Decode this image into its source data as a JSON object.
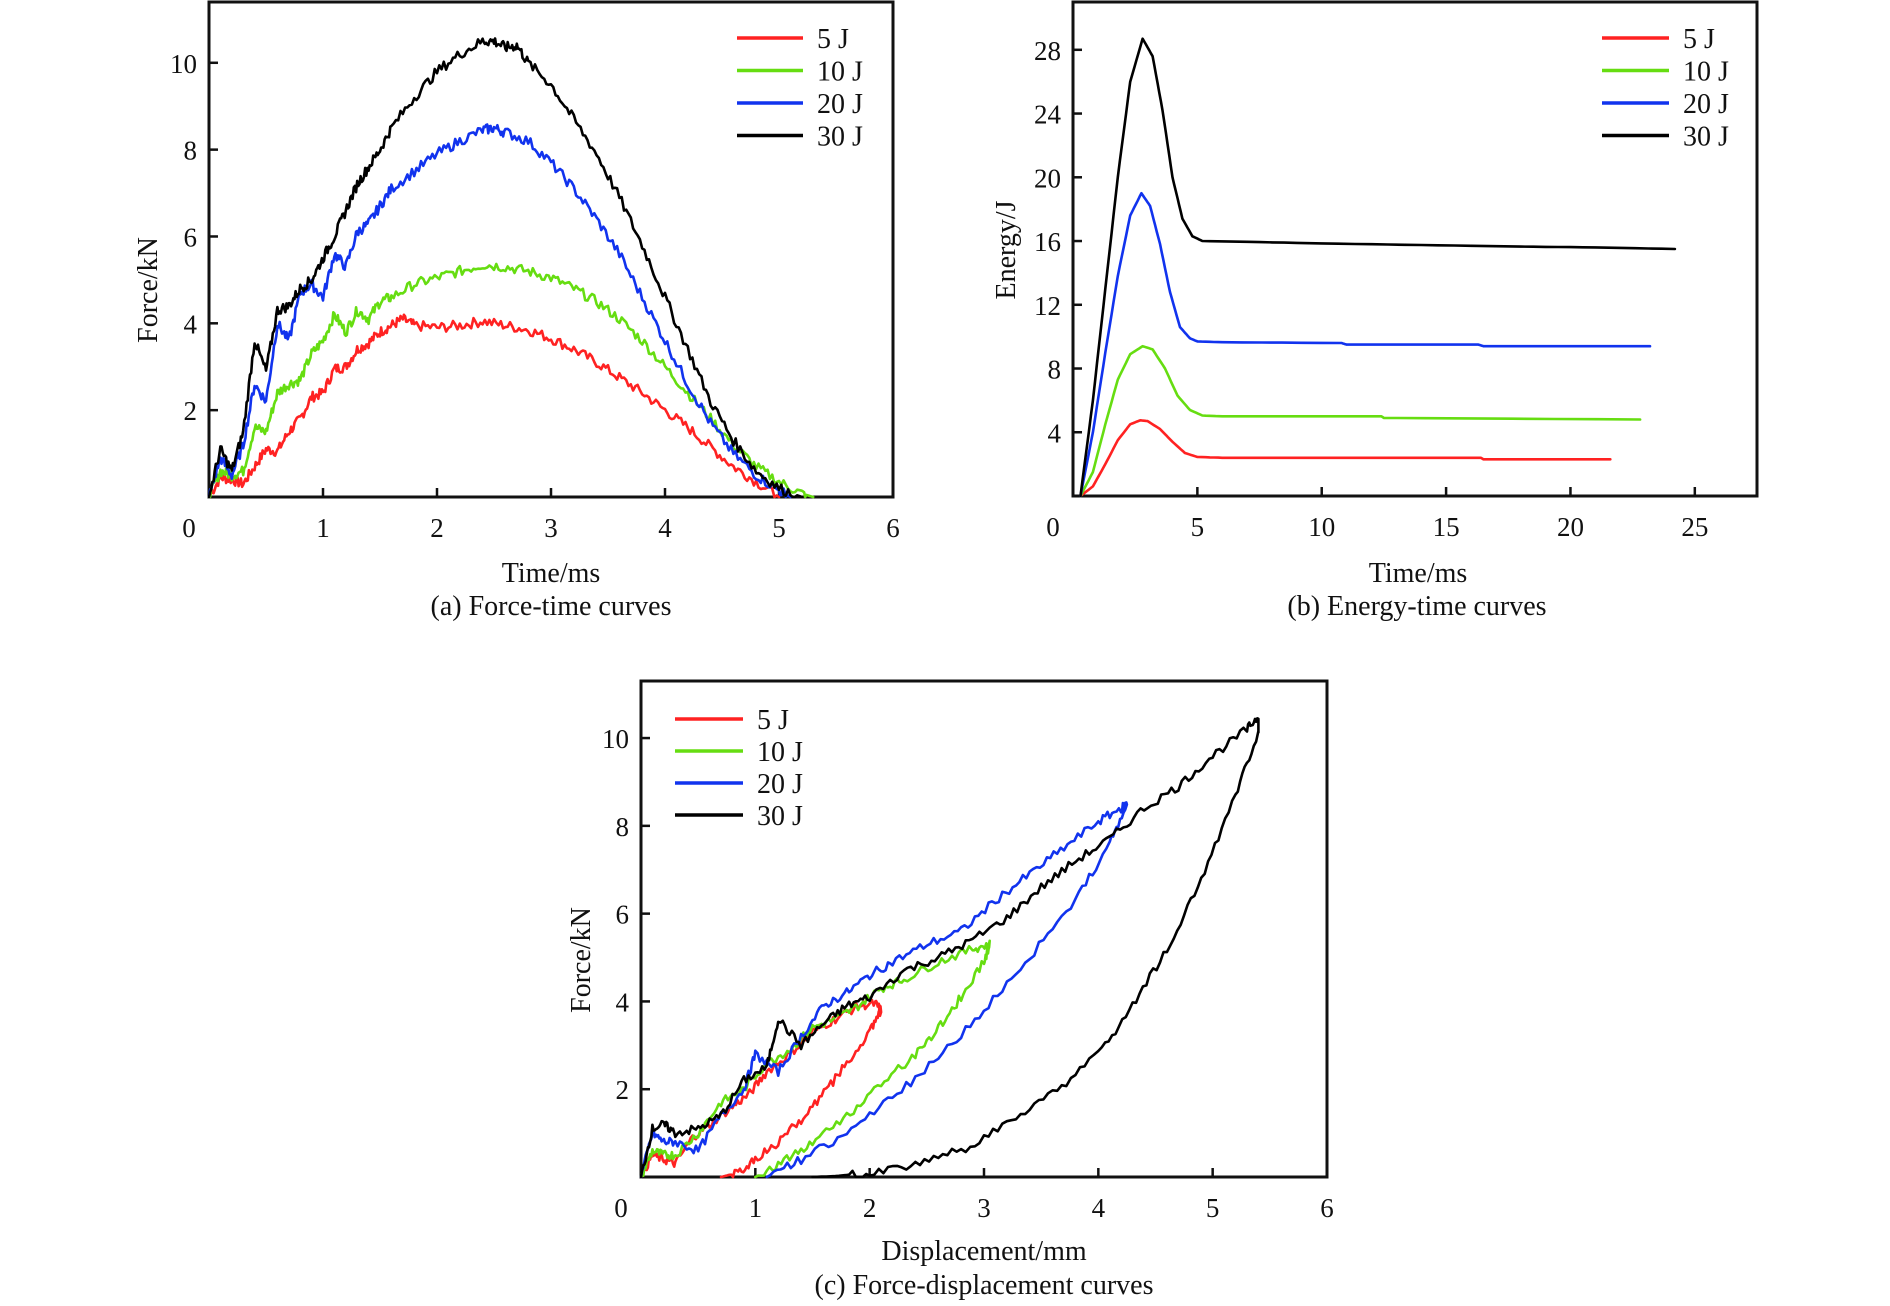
{
  "colors": {
    "5 J": "#ff2222",
    "10 J": "#66dd11",
    "20 J": "#1133ee",
    "30 J": "#000000"
  },
  "chart_data": [
    {
      "id": "a",
      "type": "line",
      "title": "",
      "caption": "(a) Force-time curves",
      "xlabel": "Time/ms",
      "ylabel": "Force/kN",
      "xlim": [
        0,
        6
      ],
      "ylim": [
        0,
        11.4
      ],
      "xticks": [
        0,
        1,
        2,
        3,
        4,
        5,
        6
      ],
      "yticks": [
        2,
        4,
        6,
        8,
        10
      ],
      "grid": false,
      "legend": "top-right",
      "noise": 0.12,
      "series": [
        {
          "name": "5 J",
          "x": [
            0.0,
            0.1,
            0.2,
            0.3,
            0.4,
            0.5,
            0.6,
            0.7,
            0.8,
            0.9,
            1.0,
            1.1,
            1.2,
            1.3,
            1.4,
            1.5,
            1.6,
            1.7,
            1.8,
            2.0,
            2.2,
            2.4,
            2.6,
            2.8,
            3.0,
            3.2,
            3.4,
            3.6,
            3.8,
            4.0,
            4.2,
            4.4,
            4.6,
            4.8,
            5.0
          ],
          "y": [
            0.0,
            0.45,
            0.4,
            0.3,
            0.7,
            1.1,
            1.05,
            1.5,
            1.8,
            2.3,
            2.4,
            2.95,
            3.0,
            3.4,
            3.55,
            3.8,
            3.95,
            4.1,
            3.95,
            3.9,
            3.95,
            4.05,
            3.95,
            3.85,
            3.65,
            3.4,
            3.1,
            2.75,
            2.4,
            2.0,
            1.6,
            1.15,
            0.7,
            0.35,
            0.0
          ]
        },
        {
          "name": "10 J",
          "x": [
            0.0,
            0.1,
            0.2,
            0.3,
            0.4,
            0.5,
            0.6,
            0.7,
            0.8,
            0.9,
            1.0,
            1.1,
            1.2,
            1.3,
            1.4,
            1.5,
            1.6,
            1.8,
            2.0,
            2.2,
            2.4,
            2.6,
            2.8,
            3.0,
            3.2,
            3.4,
            3.6,
            3.8,
            4.0,
            4.2,
            4.4,
            4.6,
            4.8,
            5.0,
            5.2,
            5.3
          ],
          "y": [
            0.0,
            0.6,
            0.5,
            0.6,
            1.6,
            1.5,
            2.4,
            2.6,
            2.7,
            3.3,
            3.6,
            4.2,
            3.8,
            4.3,
            4.1,
            4.5,
            4.6,
            4.9,
            5.05,
            5.2,
            5.35,
            5.3,
            5.2,
            5.05,
            4.8,
            4.5,
            4.1,
            3.6,
            3.0,
            2.4,
            1.8,
            1.2,
            0.7,
            0.35,
            0.08,
            0.0
          ]
        },
        {
          "name": "20 J",
          "x": [
            0.0,
            0.1,
            0.2,
            0.3,
            0.4,
            0.5,
            0.6,
            0.7,
            0.8,
            0.9,
            1.0,
            1.1,
            1.2,
            1.3,
            1.4,
            1.5,
            1.6,
            1.8,
            2.0,
            2.2,
            2.4,
            2.5,
            2.6,
            2.8,
            3.0,
            3.2,
            3.4,
            3.6,
            3.8,
            4.0,
            4.2,
            4.4,
            4.6,
            4.8,
            5.0,
            5.1
          ],
          "y": [
            0.0,
            0.9,
            0.5,
            1.2,
            2.6,
            2.2,
            4.0,
            3.6,
            4.7,
            4.9,
            4.6,
            5.6,
            5.3,
            6.1,
            6.3,
            6.7,
            7.1,
            7.5,
            7.9,
            8.2,
            8.45,
            8.5,
            8.4,
            8.2,
            7.7,
            7.1,
            6.4,
            5.6,
            4.6,
            3.6,
            2.6,
            1.7,
            1.0,
            0.5,
            0.15,
            0.0
          ]
        },
        {
          "name": "30 J",
          "x": [
            0.0,
            0.1,
            0.2,
            0.3,
            0.4,
            0.5,
            0.6,
            0.7,
            0.8,
            0.9,
            1.0,
            1.1,
            1.2,
            1.3,
            1.4,
            1.5,
            1.6,
            1.8,
            2.0,
            2.2,
            2.4,
            2.5,
            2.6,
            2.7,
            2.8,
            3.0,
            3.2,
            3.4,
            3.6,
            3.8,
            4.0,
            4.2,
            4.4,
            4.6,
            4.8,
            5.0,
            5.2
          ],
          "y": [
            0.0,
            1.1,
            0.6,
            1.5,
            3.6,
            2.9,
            4.3,
            4.4,
            4.8,
            5.0,
            5.5,
            6.0,
            6.6,
            7.2,
            7.6,
            8.0,
            8.5,
            9.2,
            9.8,
            10.2,
            10.5,
            10.5,
            10.35,
            10.4,
            10.0,
            9.5,
            8.7,
            7.9,
            6.9,
            5.8,
            4.6,
            3.4,
            2.2,
            1.3,
            0.6,
            0.2,
            0.0
          ]
        }
      ]
    },
    {
      "id": "b",
      "type": "line",
      "title": "",
      "caption": "(b) Energy-time curves",
      "xlabel": "Time/ms",
      "ylabel": "Energy/J",
      "xlim": [
        0,
        27.5
      ],
      "ylim": [
        0,
        31
      ],
      "xticks": [
        0,
        5,
        10,
        15,
        20,
        25
      ],
      "yticks": [
        4,
        8,
        12,
        16,
        20,
        24,
        28
      ],
      "grid": false,
      "legend": "top-right",
      "noise": 0,
      "series": [
        {
          "name": "5 J",
          "x": [
            0.3,
            0.8,
            1.3,
            1.8,
            2.3,
            2.7,
            3.0,
            3.5,
            4.0,
            4.5,
            5.0,
            6,
            10,
            16.4,
            16.5,
            21.6
          ],
          "y": [
            0,
            0.6,
            2.0,
            3.5,
            4.5,
            4.75,
            4.7,
            4.2,
            3.4,
            2.7,
            2.45,
            2.4,
            2.4,
            2.4,
            2.3,
            2.3
          ]
        },
        {
          "name": "10 J",
          "x": [
            0.3,
            0.8,
            1.3,
            1.8,
            2.3,
            2.8,
            3.2,
            3.7,
            4.2,
            4.7,
            5.2,
            6,
            12.4,
            12.5,
            22.8
          ],
          "y": [
            0,
            1.5,
            4.5,
            7.3,
            8.9,
            9.4,
            9.2,
            8.0,
            6.3,
            5.4,
            5.05,
            5.0,
            5.0,
            4.9,
            4.8
          ]
        },
        {
          "name": "20 J",
          "x": [
            0.3,
            0.8,
            1.3,
            1.8,
            2.3,
            2.75,
            3.1,
            3.5,
            3.9,
            4.3,
            4.7,
            5.0,
            6,
            10.8,
            11,
            16.3,
            16.5,
            23.2
          ],
          "y": [
            0,
            4.0,
            9.0,
            13.8,
            17.6,
            19.0,
            18.2,
            15.8,
            12.8,
            10.6,
            9.9,
            9.7,
            9.65,
            9.6,
            9.5,
            9.5,
            9.4,
            9.4
          ]
        },
        {
          "name": "30 J",
          "x": [
            0.3,
            0.8,
            1.3,
            1.8,
            2.3,
            2.8,
            3.2,
            3.6,
            4.0,
            4.4,
            4.8,
            5.2,
            7,
            10,
            14,
            18,
            21,
            24.2
          ],
          "y": [
            0,
            6.0,
            13.0,
            20.0,
            26.0,
            28.7,
            27.6,
            24.2,
            20.0,
            17.4,
            16.3,
            16.0,
            15.95,
            15.85,
            15.75,
            15.65,
            15.6,
            15.5
          ]
        }
      ]
    },
    {
      "id": "c",
      "type": "line",
      "title": "",
      "caption": "(c) Force-displacement curves",
      "xlabel": "Displacement/mm",
      "ylabel": "Force/kN",
      "xlim": [
        0,
        6
      ],
      "ylim": [
        0,
        11.3
      ],
      "xticks": [
        0,
        1,
        2,
        3,
        4,
        5,
        6
      ],
      "yticks": [
        2,
        4,
        6,
        8,
        10
      ],
      "grid": false,
      "legend": "top-left",
      "noise": 0.1,
      "series": [
        {
          "name": "5 J",
          "x": [
            0.0,
            0.1,
            0.2,
            0.3,
            0.45,
            0.6,
            0.8,
            0.95,
            1.1,
            1.3,
            1.5,
            1.7,
            1.9,
            2.05,
            2.1,
            2.0,
            1.8,
            1.6,
            1.4,
            1.2,
            1.0,
            0.85,
            0.7
          ],
          "y": [
            0.0,
            0.5,
            0.4,
            0.3,
            0.9,
            1.2,
            1.6,
            1.9,
            2.4,
            2.8,
            3.3,
            3.6,
            3.9,
            3.95,
            3.8,
            3.3,
            2.6,
            1.9,
            1.3,
            0.8,
            0.4,
            0.1,
            0.0
          ]
        },
        {
          "name": "10 J",
          "x": [
            0.0,
            0.1,
            0.2,
            0.3,
            0.5,
            0.7,
            0.9,
            1.1,
            1.3,
            1.5,
            1.7,
            1.9,
            2.1,
            2.3,
            2.6,
            2.9,
            3.05,
            3.0,
            2.8,
            2.6,
            2.4,
            2.1,
            1.8,
            1.5,
            1.25,
            1.0
          ],
          "y": [
            0.0,
            0.6,
            0.5,
            0.5,
            1.0,
            1.7,
            2.0,
            2.6,
            2.9,
            3.4,
            3.6,
            3.9,
            4.3,
            4.5,
            4.9,
            5.2,
            5.3,
            4.9,
            4.1,
            3.4,
            2.8,
            2.1,
            1.4,
            0.8,
            0.35,
            0.0
          ]
        },
        {
          "name": "20 J",
          "x": [
            0.0,
            0.1,
            0.2,
            0.3,
            0.5,
            0.7,
            0.9,
            1.0,
            1.2,
            1.4,
            1.6,
            1.8,
            2.0,
            2.2,
            2.5,
            2.8,
            3.1,
            3.4,
            3.7,
            4.0,
            4.2,
            4.25,
            4.1,
            3.8,
            3.4,
            3.0,
            2.6,
            2.2,
            1.8,
            1.4,
            1.1
          ],
          "y": [
            0.0,
            1.0,
            0.8,
            0.8,
            0.6,
            1.4,
            2.0,
            2.8,
            2.4,
            3.2,
            3.9,
            4.2,
            4.6,
            4.9,
            5.3,
            5.6,
            6.3,
            6.9,
            7.5,
            8.1,
            8.4,
            8.5,
            7.6,
            6.3,
            5.0,
            3.8,
            2.7,
            1.8,
            1.0,
            0.4,
            0.0
          ]
        },
        {
          "name": "30 J",
          "x": [
            0.0,
            0.1,
            0.2,
            0.3,
            0.5,
            0.7,
            0.9,
            1.1,
            1.2,
            1.4,
            1.6,
            1.8,
            2.0,
            2.3,
            2.6,
            2.9,
            3.2,
            3.5,
            3.8,
            4.1,
            4.4,
            4.7,
            5.0,
            5.3,
            5.4,
            5.4,
            5.2,
            4.9,
            4.6,
            4.3,
            4.0,
            3.6,
            3.2,
            2.8,
            2.4,
            2.0,
            1.7,
            1.5
          ],
          "y": [
            0.0,
            1.1,
            1.2,
            1.0,
            1.1,
            1.4,
            2.2,
            2.5,
            3.6,
            3.0,
            3.5,
            3.9,
            4.1,
            4.7,
            5.0,
            5.4,
            5.9,
            6.6,
            7.2,
            7.7,
            8.4,
            8.9,
            9.6,
            10.2,
            10.5,
            10.1,
            8.7,
            6.8,
            5.2,
            3.9,
            2.8,
            1.9,
            1.2,
            0.6,
            0.3,
            0.1,
            0.02,
            0.0
          ]
        }
      ]
    }
  ]
}
